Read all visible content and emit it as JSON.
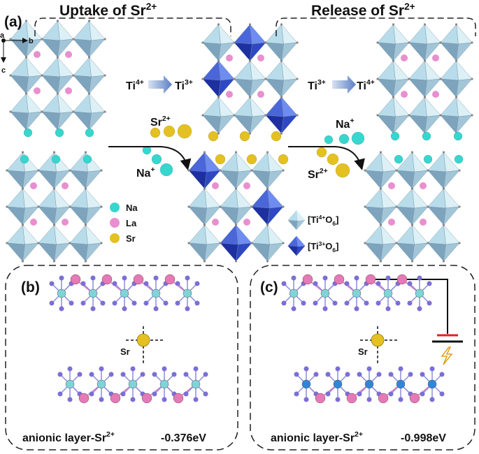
{
  "panel_a": {
    "label": "(a)",
    "uptake_title": {
      "text": "Uptake of Sr",
      "charge": "2+"
    },
    "release_title": {
      "text": "Release of Sr",
      "charge": "2+"
    },
    "axes": {
      "a": "a",
      "b": "b",
      "c": "c"
    },
    "reduction": {
      "from": "Ti",
      "from_charge": "4+",
      "to": "Ti",
      "to_charge": "3+"
    },
    "oxidation": {
      "from": "Ti",
      "from_charge": "3+",
      "to": "Ti",
      "to_charge": "4+"
    },
    "uptake_in": {
      "ion": "Sr",
      "charge": "2+"
    },
    "uptake_out": {
      "ion": "Na",
      "charge": "+"
    },
    "release_in": {
      "ion": "Na",
      "charge": "+"
    },
    "release_out": {
      "ion": "Sr",
      "charge": "2+"
    },
    "legend": {
      "atoms": [
        "Na",
        "La",
        "Sr"
      ],
      "ti4": {
        "open": "[Ti",
        "charge": "4+",
        "oxygen": "O",
        "count": "6",
        "close": "]"
      },
      "ti3": {
        "open": "[Ti",
        "charge": "3+",
        "oxygen": "O",
        "count": "6",
        "close": "]"
      }
    }
  },
  "panel_b": {
    "label": "(b)",
    "atom": "Sr",
    "caption": {
      "text": "anionic layer-Sr",
      "charge": "2+"
    },
    "energy": "-0.376eV"
  },
  "panel_c": {
    "label": "(c)",
    "atom": "Sr",
    "caption": {
      "text": "anionic layer-Sr",
      "charge": "2+"
    },
    "energy": "-0.998eV"
  }
}
